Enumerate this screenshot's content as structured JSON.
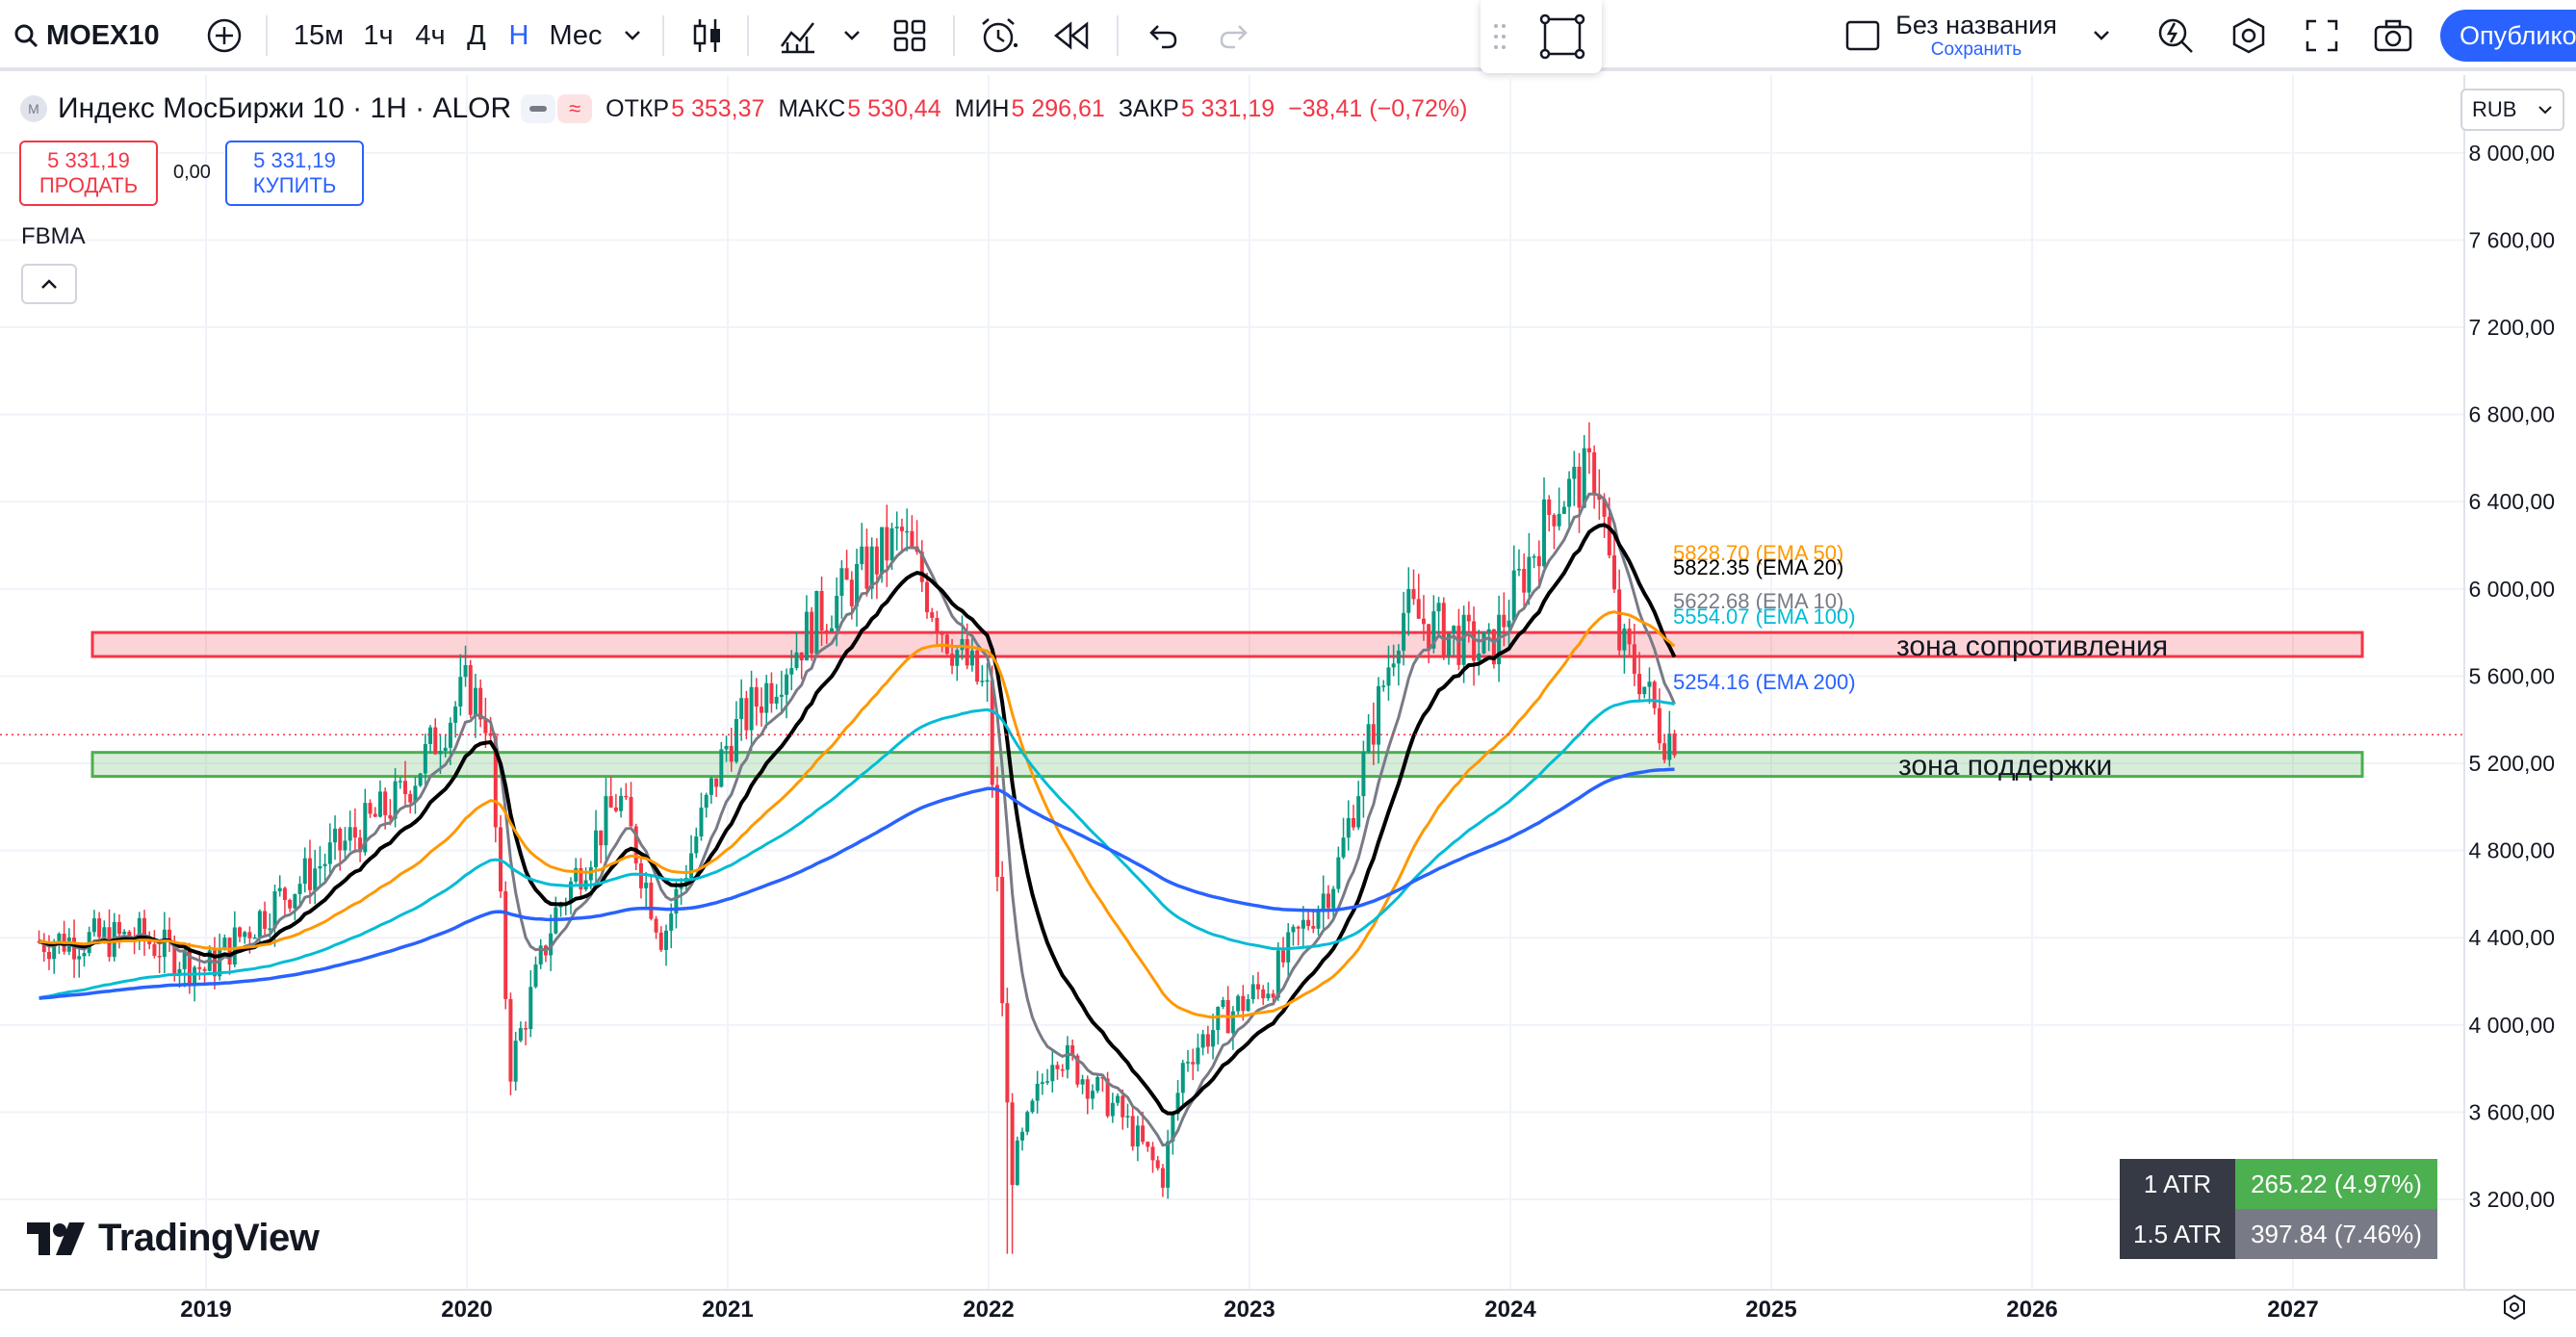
{
  "toolbar": {
    "symbol": "MOEX10",
    "intervals": [
      "15м",
      "1ч",
      "4ч",
      "Д",
      "Н",
      "Мес"
    ],
    "active_interval": "Н",
    "layout_name": "Без названия",
    "layout_save": "Сохранить",
    "publish_label": "Опублико"
  },
  "legend": {
    "title": "Индекс МосБиржи 10 · 1Н · ALOR",
    "open_label": "ОТКР",
    "open": "5 353,37",
    "high_label": "МАКС",
    "high": "5 530,44",
    "low_label": "МИН",
    "low": "5 296,61",
    "close_label": "ЗАКР",
    "close": "5 331,19",
    "change": "−38,41 (−0,72%)"
  },
  "trade": {
    "sell_price": "5 331,19",
    "sell_label": "ПРОДАТЬ",
    "spread": "0,00",
    "buy_price": "5 331,19",
    "buy_label": "КУПИТЬ"
  },
  "indicator_name": "FBMA",
  "currency": "RUB",
  "price_axis": {
    "ticks": [
      "8 000,00",
      "7 600,00",
      "7 200,00",
      "6 800,00",
      "6 400,00",
      "6 000,00",
      "5 600,00",
      "5 200,00",
      "4 800,00",
      "4 400,00",
      "4 000,00",
      "3 600,00",
      "3 200,00"
    ],
    "last_price": "5 331,19"
  },
  "time_axis": {
    "ticks": [
      "2019",
      "2020",
      "2021",
      "2022",
      "2023",
      "2024",
      "2025",
      "2026",
      "2027"
    ]
  },
  "ema_labels": [
    {
      "text": "5828.70 (EMA 50)",
      "color": "#ff9800"
    },
    {
      "text": "5822.35 (EMA 20)",
      "color": "#000000"
    },
    {
      "text": "5622.68 (EMA 10)",
      "color": "#787b86"
    },
    {
      "text": "5554.07 (EMA 100)",
      "color": "#00bcd4"
    },
    {
      "text": "5254.16 (EMA 200)",
      "color": "#2962ff"
    }
  ],
  "zones": {
    "resistance_label": "зона сопротивления",
    "support_label": "зона поддержки"
  },
  "atr": [
    {
      "label": "1 ATR",
      "value": "265.22 (4.97%)",
      "color": "#4caf50"
    },
    {
      "label": "1.5 ATR",
      "value": "397.84 (7.46%)",
      "color": "#787b86"
    }
  ],
  "brand": "TradingView",
  "chart_data": {
    "type": "candlestick",
    "price_min": 3000,
    "price_max": 8000,
    "resistance_zone": [
      5690,
      5800
    ],
    "support_zone": [
      5140,
      5250
    ],
    "anchors": [
      [
        "2018-04",
        4380
      ],
      [
        "2018-10",
        4400
      ],
      [
        "2019-01",
        4250
      ],
      [
        "2019-04",
        4550
      ],
      [
        "2019-07",
        4800
      ],
      [
        "2019-10",
        5050
      ],
      [
        "2020-01",
        5550
      ],
      [
        "2020-02",
        5400
      ],
      [
        "2020-03",
        3800
      ],
      [
        "2020-05",
        4500
      ],
      [
        "2020-08",
        5050
      ],
      [
        "2020-10",
        4400
      ],
      [
        "2021-01",
        5300
      ],
      [
        "2021-05",
        5850
      ],
      [
        "2021-09",
        6250
      ],
      [
        "2021-11",
        5800
      ],
      [
        "2022-01",
        5500
      ],
      [
        "2022-02",
        3300
      ],
      [
        "2022-04",
        3900
      ],
      [
        "2022-07",
        3600
      ],
      [
        "2022-09",
        3300
      ],
      [
        "2022-10",
        3850
      ],
      [
        "2022-12",
        4050
      ],
      [
        "2023-02",
        4200
      ],
      [
        "2023-05",
        4700
      ],
      [
        "2023-08",
        5900
      ],
      [
        "2023-12",
        5700
      ],
      [
        "2024-03",
        6400
      ],
      [
        "2024-05",
        6550
      ],
      [
        "2024-06",
        5750
      ],
      [
        "2024-07",
        5600
      ],
      [
        "2024-08",
        5331
      ]
    ],
    "series": [
      {
        "name": "EMA 10",
        "color": "#787b86"
      },
      {
        "name": "EMA 20",
        "color": "#000000"
      },
      {
        "name": "EMA 50",
        "color": "#ff9800"
      },
      {
        "name": "EMA 100",
        "color": "#00bcd4"
      },
      {
        "name": "EMA 200",
        "color": "#2962ff"
      }
    ]
  }
}
